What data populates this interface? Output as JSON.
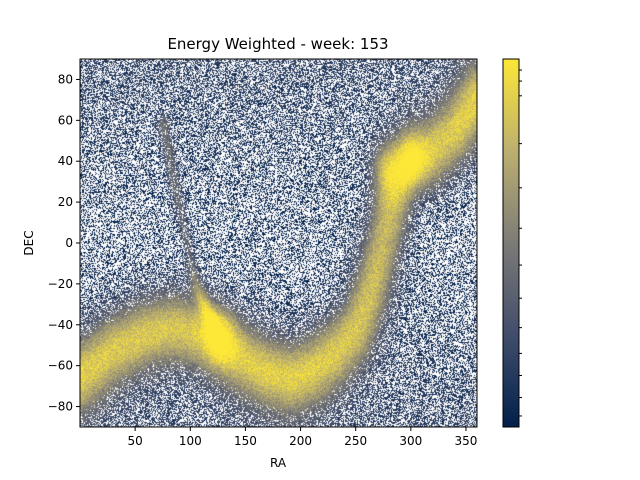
{
  "chart_data": {
    "type": "heatmap",
    "title": "Energy Weighted - week: 153",
    "xlabel": "RA",
    "ylabel": "DEC",
    "xlim": [
      0,
      360
    ],
    "ylim": [
      -90,
      90
    ],
    "x_ticks": [
      50,
      100,
      150,
      200,
      250,
      300,
      350
    ],
    "y_ticks": [
      -80,
      -60,
      -40,
      -20,
      0,
      20,
      40,
      60,
      80
    ],
    "colormap": "cividis",
    "colormap_stops": [
      "#00204c",
      "#414d6b",
      "#7c7b78",
      "#bcaf6f",
      "#fde737"
    ],
    "empty_bin_color": "#ffffff",
    "colorbar": {
      "location": "right",
      "tick_labels": []
    },
    "grid": false,
    "features": {
      "galactic_plane": {
        "description": "bright S-shaped band of high intensity",
        "points": [
          [
            0,
            -65
          ],
          [
            30,
            -52
          ],
          [
            60,
            -44
          ],
          [
            85,
            -41
          ],
          [
            110,
            -44
          ],
          [
            130,
            -50
          ],
          [
            150,
            -57
          ],
          [
            170,
            -63
          ],
          [
            190,
            -66
          ],
          [
            210,
            -62
          ],
          [
            230,
            -54
          ],
          [
            250,
            -42
          ],
          [
            262,
            -25
          ],
          [
            272,
            -5
          ],
          [
            280,
            12
          ],
          [
            288,
            30
          ],
          [
            300,
            40
          ],
          [
            320,
            45
          ],
          [
            340,
            55
          ],
          [
            360,
            70
          ]
        ]
      },
      "bright_spots": [
        {
          "ra": 127,
          "dec": -45,
          "intensity": 1.0
        },
        {
          "ra": 275,
          "dec": 38,
          "intensity": 0.9
        },
        {
          "ra": 300,
          "dec": 40,
          "intensity": 0.85
        }
      ],
      "secondary_band": {
        "description": "faint diagonal arc",
        "points": [
          [
            75,
            58
          ],
          [
            85,
            30
          ],
          [
            95,
            5
          ],
          [
            105,
            -20
          ],
          [
            120,
            -40
          ]
        ]
      }
    }
  }
}
